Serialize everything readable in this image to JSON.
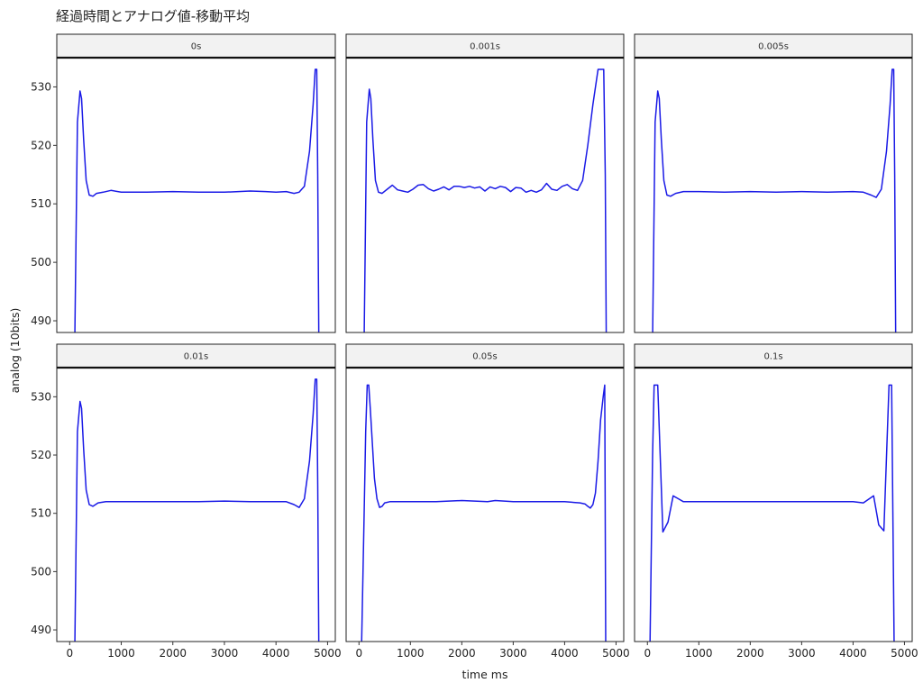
{
  "chart_data": {
    "type": "line",
    "title": "経過時間とアナログ値-移動平均",
    "xlabel": "time ms",
    "ylabel": "analog (10bits)",
    "xlim": [
      -250,
      5150
    ],
    "ylim": [
      488,
      535
    ],
    "x_ticks": [
      0,
      1000,
      2000,
      3000,
      4000,
      5000
    ],
    "y_ticks": [
      490,
      500,
      510,
      520,
      530
    ],
    "line_color": "#1a1ae6",
    "facet_strip_color": "#f2f2f2",
    "panels": [
      {
        "label": "0s",
        "x": [
          100,
          150,
          200,
          230,
          270,
          320,
          380,
          450,
          520,
          650,
          800,
          1000,
          1500,
          2000,
          2500,
          3000,
          3500,
          3800,
          4000,
          4200,
          4350,
          4450,
          4550,
          4650,
          4720,
          4760,
          4790,
          4810,
          4830
        ],
        "y": [
          487,
          524,
          529.3,
          528,
          521,
          514,
          511.5,
          511.3,
          511.8,
          512,
          512.3,
          512,
          512,
          512.1,
          512,
          512,
          512.2,
          512.1,
          512,
          512.1,
          511.8,
          512,
          513,
          519,
          527,
          533,
          533,
          515,
          487
        ]
      },
      {
        "label": "0.001s",
        "x": [
          100,
          150,
          200,
          230,
          270,
          320,
          380,
          450,
          550,
          650,
          750,
          850,
          950,
          1050,
          1150,
          1250,
          1350,
          1450,
          1550,
          1650,
          1750,
          1850,
          1950,
          2050,
          2150,
          2250,
          2350,
          2450,
          2550,
          2650,
          2750,
          2850,
          2950,
          3050,
          3150,
          3250,
          3350,
          3450,
          3550,
          3650,
          3750,
          3850,
          3950,
          4050,
          4150,
          4250,
          4350,
          4450,
          4550,
          4650,
          4720,
          4760,
          4790,
          4810,
          4830
        ],
        "y": [
          487,
          524,
          529.6,
          528,
          521,
          514,
          512,
          511.8,
          512.5,
          513.2,
          512.4,
          512.2,
          512,
          512.5,
          513.2,
          513.3,
          512.6,
          512.2,
          512.5,
          512.9,
          512.4,
          513,
          513,
          512.8,
          513,
          512.7,
          512.9,
          512.2,
          512.9,
          512.6,
          513,
          512.8,
          512.1,
          512.8,
          512.7,
          512,
          512.3,
          512,
          512.4,
          513.5,
          512.5,
          512.3,
          513,
          513.3,
          512.6,
          512.3,
          514,
          520,
          527,
          533,
          533,
          533,
          515,
          487,
          487
        ],
        "_note": ""
      },
      {
        "label": "0.005s",
        "x": [
          100,
          150,
          200,
          230,
          270,
          320,
          380,
          450,
          550,
          700,
          1000,
          1500,
          2000,
          2500,
          3000,
          3500,
          4000,
          4200,
          4350,
          4450,
          4550,
          4650,
          4720,
          4760,
          4790,
          4810,
          4830
        ],
        "y": [
          487,
          524,
          529.3,
          528,
          521,
          514,
          511.5,
          511.3,
          511.8,
          512.1,
          512.1,
          512,
          512.1,
          512,
          512.1,
          512,
          512.1,
          512,
          511.5,
          511.1,
          512.5,
          519,
          527,
          533,
          533,
          515,
          487
        ]
      },
      {
        "label": "0.01s",
        "x": [
          100,
          150,
          200,
          230,
          270,
          320,
          380,
          450,
          550,
          700,
          1000,
          1500,
          2000,
          2500,
          3000,
          3500,
          4000,
          4200,
          4350,
          4450,
          4550,
          4650,
          4720,
          4760,
          4790,
          4810,
          4830
        ],
        "y": [
          487,
          524,
          529.2,
          528,
          521,
          514,
          511.5,
          511.2,
          511.8,
          512,
          512,
          512,
          512,
          512,
          512.1,
          512,
          512,
          512,
          511.5,
          511,
          512.5,
          519,
          527,
          533,
          533,
          515,
          487
        ]
      },
      {
        "label": "0.05s",
        "x": [
          50,
          100,
          130,
          160,
          190,
          220,
          260,
          300,
          350,
          400,
          450,
          500,
          600,
          800,
          1000,
          1500,
          2000,
          2500,
          2650,
          3000,
          3500,
          4000,
          4300,
          4400,
          4450,
          4500,
          4550,
          4600,
          4650,
          4700,
          4750,
          4780,
          4800
        ],
        "y": [
          487,
          510,
          524,
          532,
          532,
          528,
          522,
          516,
          512.5,
          511,
          511.2,
          511.8,
          512,
          512,
          512,
          512,
          512.2,
          512,
          512.2,
          512,
          512,
          512,
          511.8,
          511.6,
          511.2,
          510.9,
          511.5,
          513.5,
          519,
          526,
          530,
          532,
          487
        ]
      },
      {
        "label": "0.1s",
        "x": [
          50,
          100,
          130,
          160,
          200,
          300,
          400,
          500,
          600,
          700,
          1000,
          2000,
          3000,
          4000,
          4200,
          4400,
          4500,
          4600,
          4700,
          4750,
          4800
        ],
        "y": [
          487,
          520,
          532,
          532,
          532,
          506.8,
          508.5,
          513,
          512.5,
          512,
          512,
          512,
          512,
          512,
          511.8,
          513,
          508,
          507,
          532,
          532,
          487
        ]
      }
    ]
  }
}
